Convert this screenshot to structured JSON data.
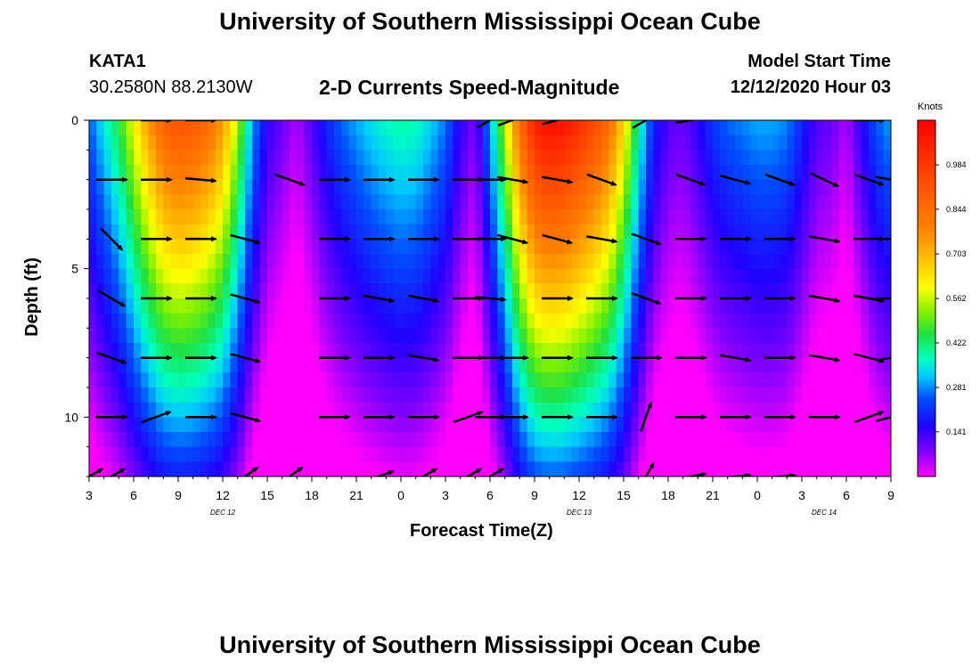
{
  "page": {
    "title_top": "University of Southern Mississippi Ocean Cube",
    "title_bottom": "University of Southern Mississippi Ocean Cube",
    "station": "KATA1",
    "coords": "30.2580N 88.2130W",
    "plot_title": "2-D Currents Speed-Magnitude",
    "model_label": "Model Start Time",
    "model_time": "12/12/2020 Hour 03"
  },
  "chart_data": {
    "type": "heatmap",
    "title": "2-D Currents Speed-Magnitude",
    "xlabel": "Forecast Time(Z)",
    "ylabel": "Depth (ft)",
    "x_tick_labels": [
      "3",
      "6",
      "9",
      "12",
      "15",
      "18",
      "21",
      "0",
      "3",
      "6",
      "9",
      "12",
      "15",
      "18",
      "21",
      "0",
      "3",
      "6",
      "9"
    ],
    "x_range_hours": [
      0,
      54
    ],
    "date_labels": [
      {
        "text": "DEC 12",
        "hour": 9
      },
      {
        "text": "DEC 13",
        "hour": 33
      },
      {
        "text": "DEC 14",
        "hour": 49.5
      }
    ],
    "y_ticks": [
      "0",
      "5",
      "10"
    ],
    "ylim": [
      12,
      0
    ],
    "colorbar": {
      "unit": "Knots",
      "range": [
        0.0,
        1.125
      ],
      "labels": [
        "0.984",
        "0.844",
        "0.703",
        "0.562",
        "0.422",
        "0.281",
        "0.141"
      ],
      "label_values": [
        0.984,
        0.844,
        0.703,
        0.562,
        0.422,
        0.281,
        0.141
      ]
    },
    "speed_profile_hours": [
      0,
      1,
      2,
      3,
      4,
      5,
      6,
      7,
      8,
      9,
      10,
      11,
      12,
      13,
      14,
      15,
      16,
      17,
      18,
      19,
      20,
      21,
      22,
      23,
      24,
      25,
      26,
      27,
      28,
      29,
      30,
      31,
      32,
      33,
      34,
      35,
      36,
      37,
      38,
      39,
      40,
      41,
      42,
      43,
      44,
      45,
      46,
      47,
      48,
      49,
      50,
      51,
      52,
      53,
      54
    ],
    "surface_speed_kn": [
      0.25,
      0.35,
      0.45,
      0.6,
      0.75,
      0.88,
      0.92,
      0.9,
      0.85,
      0.75,
      0.55,
      0.3,
      0.15,
      0.1,
      0.05,
      0.12,
      0.2,
      0.26,
      0.3,
      0.34,
      0.37,
      0.39,
      0.38,
      0.33,
      0.27,
      0.15,
      0.08,
      0.3,
      0.55,
      0.85,
      1.05,
      1.1,
      1.08,
      1.02,
      0.95,
      0.85,
      0.65,
      0.4,
      0.2,
      0.12,
      0.1,
      0.15,
      0.22,
      0.26,
      0.28,
      0.3,
      0.3,
      0.28,
      0.2,
      0.12,
      0.1,
      0.05,
      0.15,
      0.25,
      0.3
    ],
    "speed_decay_per_ft": 0.055,
    "vector_rows_depth_ft": [
      0,
      2,
      4,
      6,
      8,
      10,
      12
    ],
    "vector_col_hours": [
      0,
      1.5,
      4.5,
      7.5,
      10.5,
      13.5,
      16.5,
      19.5,
      22.5,
      25.5,
      27,
      28.5,
      31.5,
      34.5,
      37.5,
      40.5,
      43.5,
      46.5,
      49.5,
      52.5,
      54
    ],
    "vector_angles_deg": [
      [
        null,
        null,
        0,
        0,
        null,
        null,
        null,
        null,
        null,
        null,
        -30,
        -20,
        -15,
        null,
        -30,
        -10,
        null,
        null,
        null,
        0,
        null
      ],
      [
        null,
        0,
        0,
        5,
        null,
        20,
        0,
        0,
        0,
        0,
        0,
        10,
        10,
        20,
        null,
        20,
        15,
        20,
        25,
        20,
        10
      ],
      [
        null,
        45,
        0,
        0,
        15,
        null,
        0,
        0,
        0,
        0,
        0,
        15,
        15,
        10,
        20,
        0,
        0,
        0,
        10,
        0,
        0
      ],
      [
        null,
        30,
        0,
        0,
        15,
        null,
        0,
        10,
        10,
        0,
        5,
        null,
        0,
        0,
        20,
        0,
        0,
        0,
        10,
        10,
        0
      ],
      [
        null,
        20,
        0,
        0,
        15,
        null,
        0,
        0,
        10,
        0,
        0,
        0,
        0,
        0,
        0,
        0,
        10,
        0,
        10,
        15,
        -10
      ],
      [
        null,
        0,
        -20,
        0,
        15,
        null,
        0,
        0,
        0,
        -20,
        0,
        0,
        0,
        0,
        -70,
        0,
        0,
        0,
        0,
        -20,
        -15
      ],
      [
        -30,
        -30,
        null,
        null,
        -35,
        -35,
        null,
        -20,
        -30,
        -30,
        -30,
        null,
        null,
        null,
        -60,
        -10,
        -5,
        -5,
        null,
        null,
        null
      ]
    ]
  }
}
